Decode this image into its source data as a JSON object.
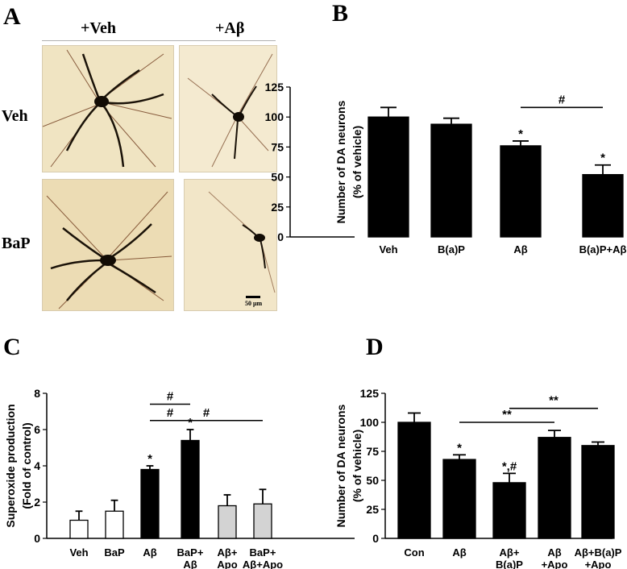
{
  "panels": {
    "A": {
      "letter": "A",
      "col_labels": [
        "+Veh",
        "+Aβ"
      ],
      "row_labels": [
        "Veh",
        "BaP"
      ],
      "scale_bar": "50 μm",
      "colors": {
        "bg": "#efe1bf",
        "neuron": "#1a1208",
        "fiber": "#7a3a1a"
      }
    },
    "B": {
      "letter": "B"
    },
    "C": {
      "letter": "C"
    },
    "D": {
      "letter": "D"
    }
  },
  "chart_data": [
    {
      "id": "B",
      "type": "bar",
      "ylabel": [
        "Number of DA neurons",
        "(% of vehicle)"
      ],
      "ylim": [
        0,
        125
      ],
      "yticks": [
        0,
        25,
        50,
        75,
        100,
        125
      ],
      "categories": [
        [
          "Veh"
        ],
        [
          "B(a)P"
        ],
        [
          "Aβ"
        ],
        [
          "B(a)P+Aβ"
        ]
      ],
      "values": [
        100,
        94,
        76,
        52
      ],
      "errors": [
        8,
        5,
        4,
        8
      ],
      "fills": [
        "#000000",
        "#000000",
        "#000000",
        "#000000"
      ],
      "marks": [
        "",
        "",
        "*",
        "*"
      ],
      "brackets": [
        {
          "from": 2,
          "to": 3,
          "y": 108,
          "label": "#"
        }
      ]
    },
    {
      "id": "C",
      "type": "bar",
      "ylabel": [
        "Superoxide production",
        "(Fold of control)"
      ],
      "ylim": [
        0,
        8
      ],
      "yticks": [
        0,
        2,
        4,
        6,
        8
      ],
      "categories": [
        [
          "Veh"
        ],
        [
          "BaP"
        ],
        [
          "Aβ"
        ],
        [
          "BaP+",
          "Aβ"
        ],
        [
          "Aβ+",
          "Apo"
        ],
        [
          "BaP+",
          "Aβ+Apo"
        ]
      ],
      "values": [
        1.0,
        1.5,
        3.8,
        5.4,
        1.8,
        1.9
      ],
      "errors": [
        0.5,
        0.6,
        0.2,
        0.6,
        0.6,
        0.8
      ],
      "fills": [
        "#ffffff",
        "#ffffff",
        "#000000",
        "#000000",
        "#d3d3d3",
        "#d3d3d3"
      ],
      "marks": [
        "",
        "",
        "*",
        "*",
        "",
        ""
      ],
      "brackets": [
        {
          "from": 2,
          "to": 3,
          "y": 6.5,
          "label": "#"
        },
        {
          "from": 2,
          "to": 3,
          "y": 7.4,
          "label": "#"
        },
        {
          "from": 2,
          "to": 5,
          "y": 6.5,
          "label": "#"
        }
      ]
    },
    {
      "id": "D",
      "type": "bar",
      "ylabel": [
        "Number of DA neurons",
        "(% of vehicle)"
      ],
      "ylim": [
        0,
        125
      ],
      "yticks": [
        0,
        25,
        50,
        75,
        100,
        125
      ],
      "categories": [
        [
          "Con"
        ],
        [
          "Aβ"
        ],
        [
          "Aβ+",
          "B(a)P"
        ],
        [
          "Aβ",
          "+Apo"
        ],
        [
          "Aβ+B(a)P",
          "+Apo"
        ]
      ],
      "values": [
        100,
        68,
        48,
        87,
        80
      ],
      "errors": [
        8,
        4,
        8,
        6,
        3
      ],
      "fills": [
        "#000000",
        "#000000",
        "#000000",
        "#000000",
        "#000000"
      ],
      "marks": [
        "",
        "*",
        "*,#",
        "",
        ""
      ],
      "brackets": [
        {
          "from": 1,
          "to": 3,
          "y": 100,
          "label": "**"
        },
        {
          "from": 2,
          "to": 4,
          "y": 112,
          "label": "**"
        }
      ]
    }
  ]
}
